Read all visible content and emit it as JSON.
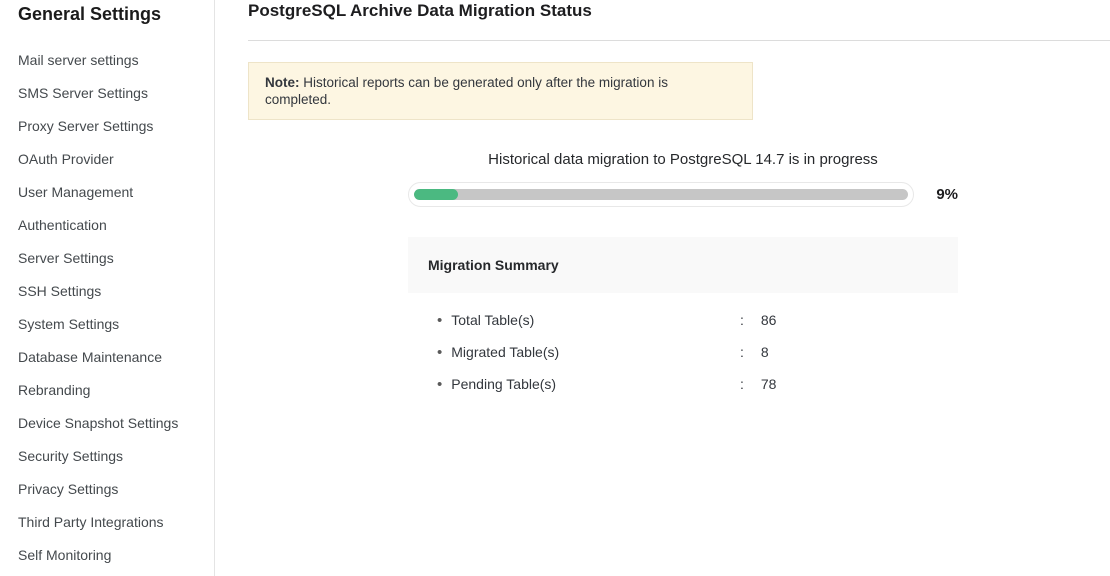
{
  "sidebar": {
    "title": "General Settings",
    "items": [
      {
        "label": "Mail server settings"
      },
      {
        "label": "SMS Server Settings"
      },
      {
        "label": "Proxy Server Settings"
      },
      {
        "label": "OAuth Provider"
      },
      {
        "label": "User Management"
      },
      {
        "label": "Authentication"
      },
      {
        "label": "Server Settings"
      },
      {
        "label": "SSH Settings"
      },
      {
        "label": "System Settings"
      },
      {
        "label": "Database Maintenance"
      },
      {
        "label": "Rebranding"
      },
      {
        "label": "Device Snapshot Settings"
      },
      {
        "label": "Security Settings"
      },
      {
        "label": "Privacy Settings"
      },
      {
        "label": "Third Party Integrations"
      },
      {
        "label": "Self Monitoring"
      }
    ]
  },
  "main": {
    "title": "PostgreSQL Archive Data Migration Status",
    "note": {
      "prefix": "Note:",
      "text": "Historical reports can be generated only after the migration is completed."
    },
    "progress": {
      "heading": "Historical data migration to PostgreSQL 14.7 is in progress",
      "percent": 9,
      "percent_label": "9%"
    },
    "summary": {
      "title": "Migration Summary",
      "colon": ":",
      "rows": [
        {
          "label": "Total Table(s)",
          "value": "86"
        },
        {
          "label": "Migrated Table(s)",
          "value": "8"
        },
        {
          "label": "Pending Table(s)",
          "value": "78"
        }
      ]
    }
  },
  "colors": {
    "progress_fill": "#4bb981",
    "progress_track": "#c6c6c6",
    "note_background": "#fdf6e2",
    "note_border": "#eee4c8",
    "summary_header_background": "#f9f9f9"
  }
}
